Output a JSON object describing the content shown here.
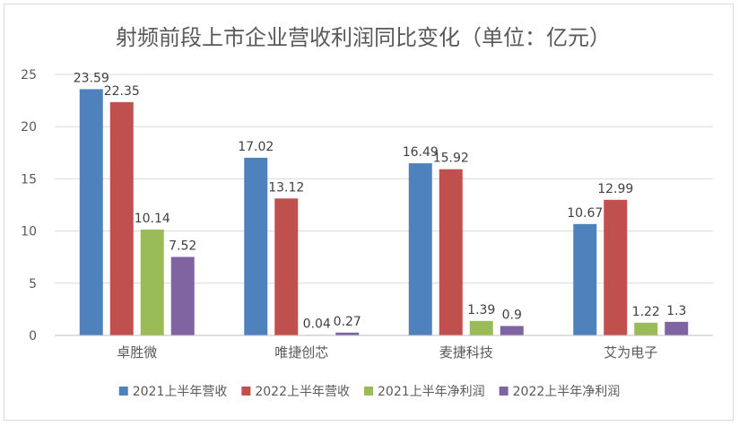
{
  "chart_data": {
    "type": "bar",
    "title": "射频前段上市企业营收利润同比变化（单位：亿元）",
    "xlabel": "",
    "ylabel": "",
    "ylim": [
      0,
      25
    ],
    "yticks": [
      0,
      5,
      10,
      15,
      20,
      25
    ],
    "grid": true,
    "legend_position": "bottom",
    "categories": [
      "卓胜微",
      "唯捷创芯",
      "麦捷科技",
      "艾为电子"
    ],
    "series": [
      {
        "name": "2021上半年营收",
        "color": "#4f81bd",
        "values": [
          23.59,
          17.02,
          16.49,
          10.67
        ],
        "labels": [
          "23.59",
          "17.02",
          "16.49",
          "10.67"
        ]
      },
      {
        "name": "2022上半年营收",
        "color": "#c0504d",
        "values": [
          22.35,
          13.12,
          15.92,
          12.99
        ],
        "labels": [
          "22.35",
          "13.12",
          "15.92",
          "12.99"
        ]
      },
      {
        "name": "2021上半年净利润",
        "color": "#9bbb59",
        "values": [
          10.14,
          0.04,
          1.39,
          1.22
        ],
        "labels": [
          "10.14",
          "0.04",
          "1.39",
          "1.22"
        ]
      },
      {
        "name": "2022上半年净利润",
        "color": "#8064a2",
        "values": [
          7.52,
          0.27,
          0.9,
          1.3
        ],
        "labels": [
          "7.52",
          "0.27",
          "0.9",
          "1.3"
        ]
      }
    ]
  }
}
